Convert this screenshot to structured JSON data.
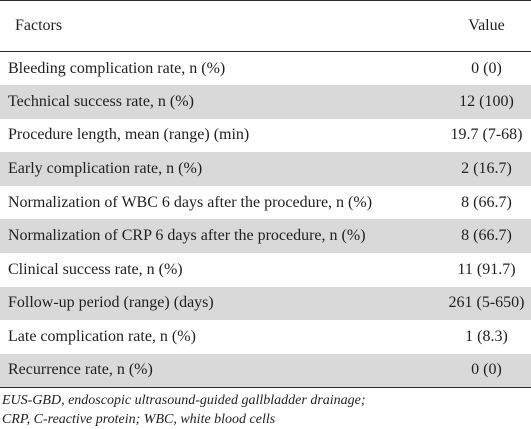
{
  "table": {
    "headers": {
      "factors": "Factors",
      "value": "Value"
    },
    "rows": [
      {
        "factor": "Bleeding complication rate, n (%)",
        "value": "0 (0)"
      },
      {
        "factor": "Technical success rate, n (%)",
        "value": "12 (100)"
      },
      {
        "factor": "Procedure length, mean (range) (min)",
        "value": "19.7 (7-68)"
      },
      {
        "factor": "Early complication rate, n (%)",
        "value": "2 (16.7)"
      },
      {
        "factor": "Normalization of WBC 6 days after the procedure, n (%)",
        "value": "8 (66.7)"
      },
      {
        "factor": "Normalization of CRP 6 days after the procedure, n (%)",
        "value": "8 (66.7)"
      },
      {
        "factor": "Clinical success rate, n (%)",
        "value": "11 (91.7)"
      },
      {
        "factor": "Follow-up period (range) (days)",
        "value": "261 (5-650)"
      },
      {
        "factor": "Late complication rate, n (%)",
        "value": "1 (8.3)"
      },
      {
        "factor": "Recurrence rate, n (%)",
        "value": "0 (0)"
      }
    ]
  },
  "footnote": {
    "line1": "EUS-GBD, endoscopic ultrasound-guided gallbladder drainage;",
    "line2": "CRP, C-reactive protein; WBC, white blood cells"
  },
  "colors": {
    "stripe": "#d9d9d9",
    "rule": "#2a2a2a",
    "text": "#1f1f1f"
  }
}
